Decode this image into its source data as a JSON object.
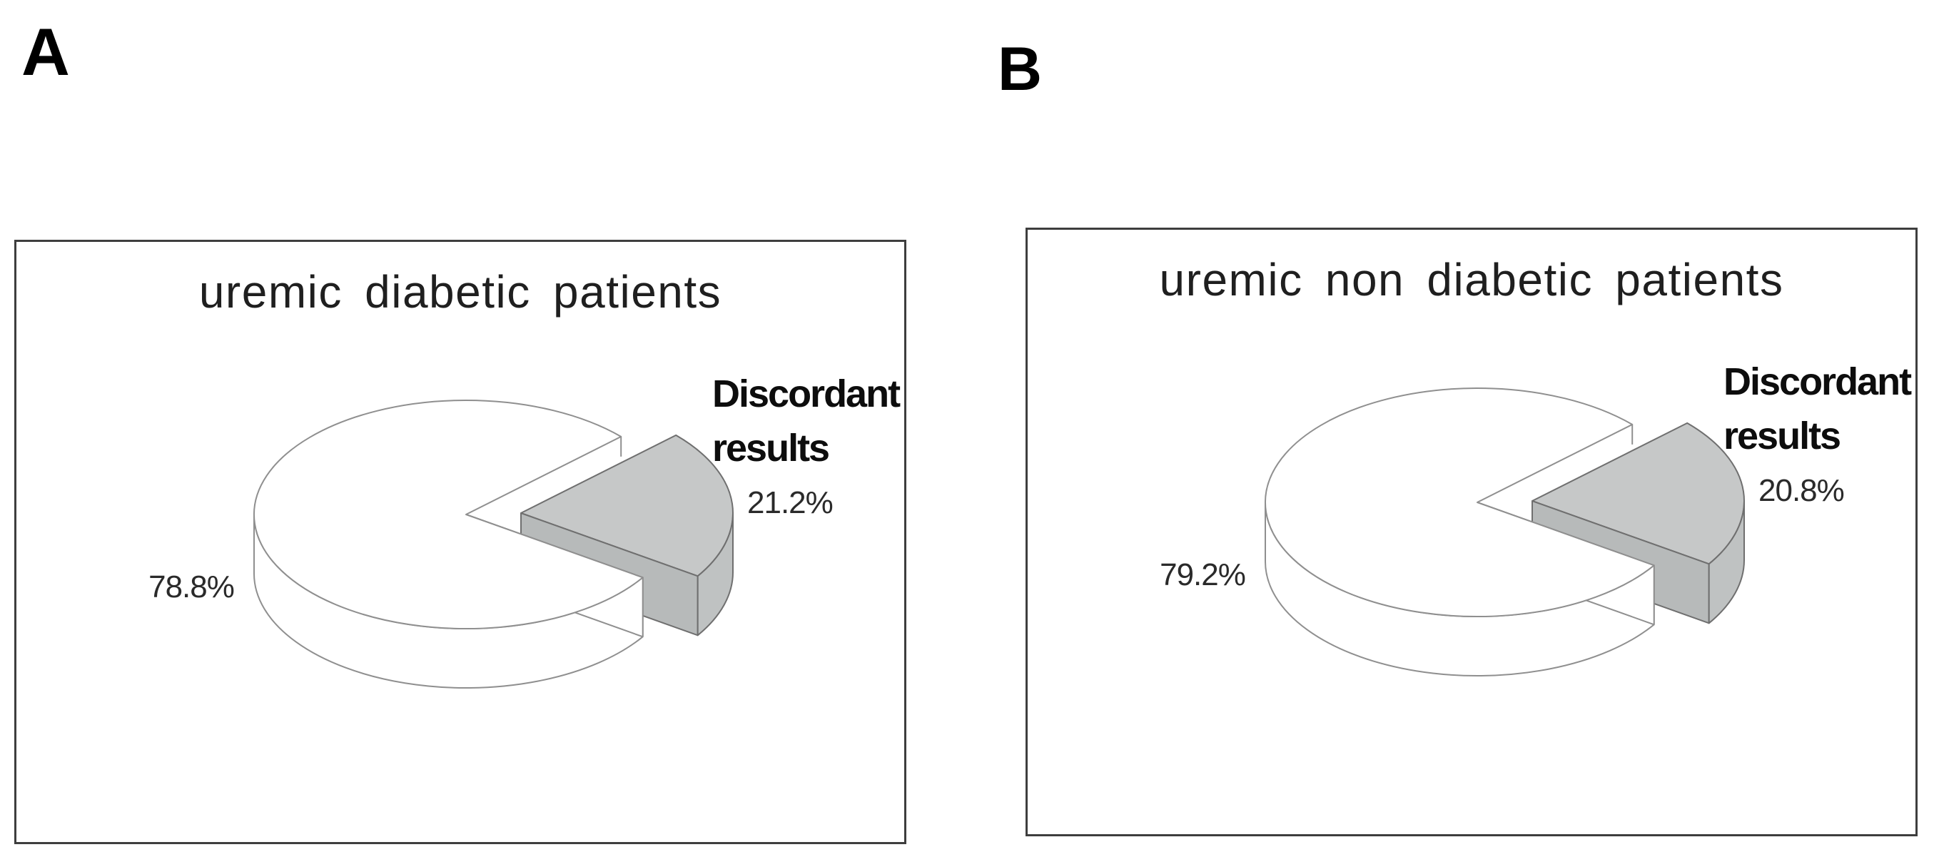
{
  "figure": {
    "description": "Two-panel 3D exploded pie chart figure",
    "background_color": "#ffffff"
  },
  "panels": [
    {
      "tag": "A",
      "title": "uremic diabetic patients",
      "majority_pct": "78.8%",
      "minority_label_line1": "Discordant",
      "minority_label_line2": "results",
      "minority_pct": "21.2%"
    },
    {
      "tag": "B",
      "title": "uremic non diabetic patients",
      "majority_pct": "79.2%",
      "minority_label_line1": "Discordant",
      "minority_label_line2": "results",
      "minority_pct": "20.8%"
    }
  ],
  "colors": {
    "background": "#ffffff",
    "panel_border": "#3e3e3e",
    "white_slice_fill": "#ffffff",
    "white_slice_stroke": "#8f8f8f",
    "gray_slice_top": "#c6c8c8",
    "gray_slice_side": "#b7baba",
    "gray_slice_rim": "#bfc2c2",
    "gray_slice_stroke": "#6f6f6f",
    "title_color": "#1f1f1f",
    "label_color": "#0d0d0d",
    "pct_color": "#2a2a2a"
  },
  "chart_data": [
    {
      "type": "pie",
      "title": "uremic diabetic patients",
      "labels": [
        "",
        "Discordant results"
      ],
      "values": [
        78.8,
        21.2
      ],
      "colors": [
        "#ffffff",
        "#c6c8c8"
      ],
      "style": "3d-exploded",
      "exploded_slice": "Discordant results",
      "data_labels": [
        "78.8%",
        "21.2%"
      ],
      "legend": "none"
    },
    {
      "type": "pie",
      "title": "uremic non diabetic patients",
      "labels": [
        "",
        "Discordant results"
      ],
      "values": [
        79.2,
        20.8
      ],
      "colors": [
        "#ffffff",
        "#c6c8c8"
      ],
      "style": "3d-exploded",
      "exploded_slice": "Discordant results",
      "data_labels": [
        "79.2%",
        "20.8%"
      ],
      "legend": "none"
    }
  ]
}
